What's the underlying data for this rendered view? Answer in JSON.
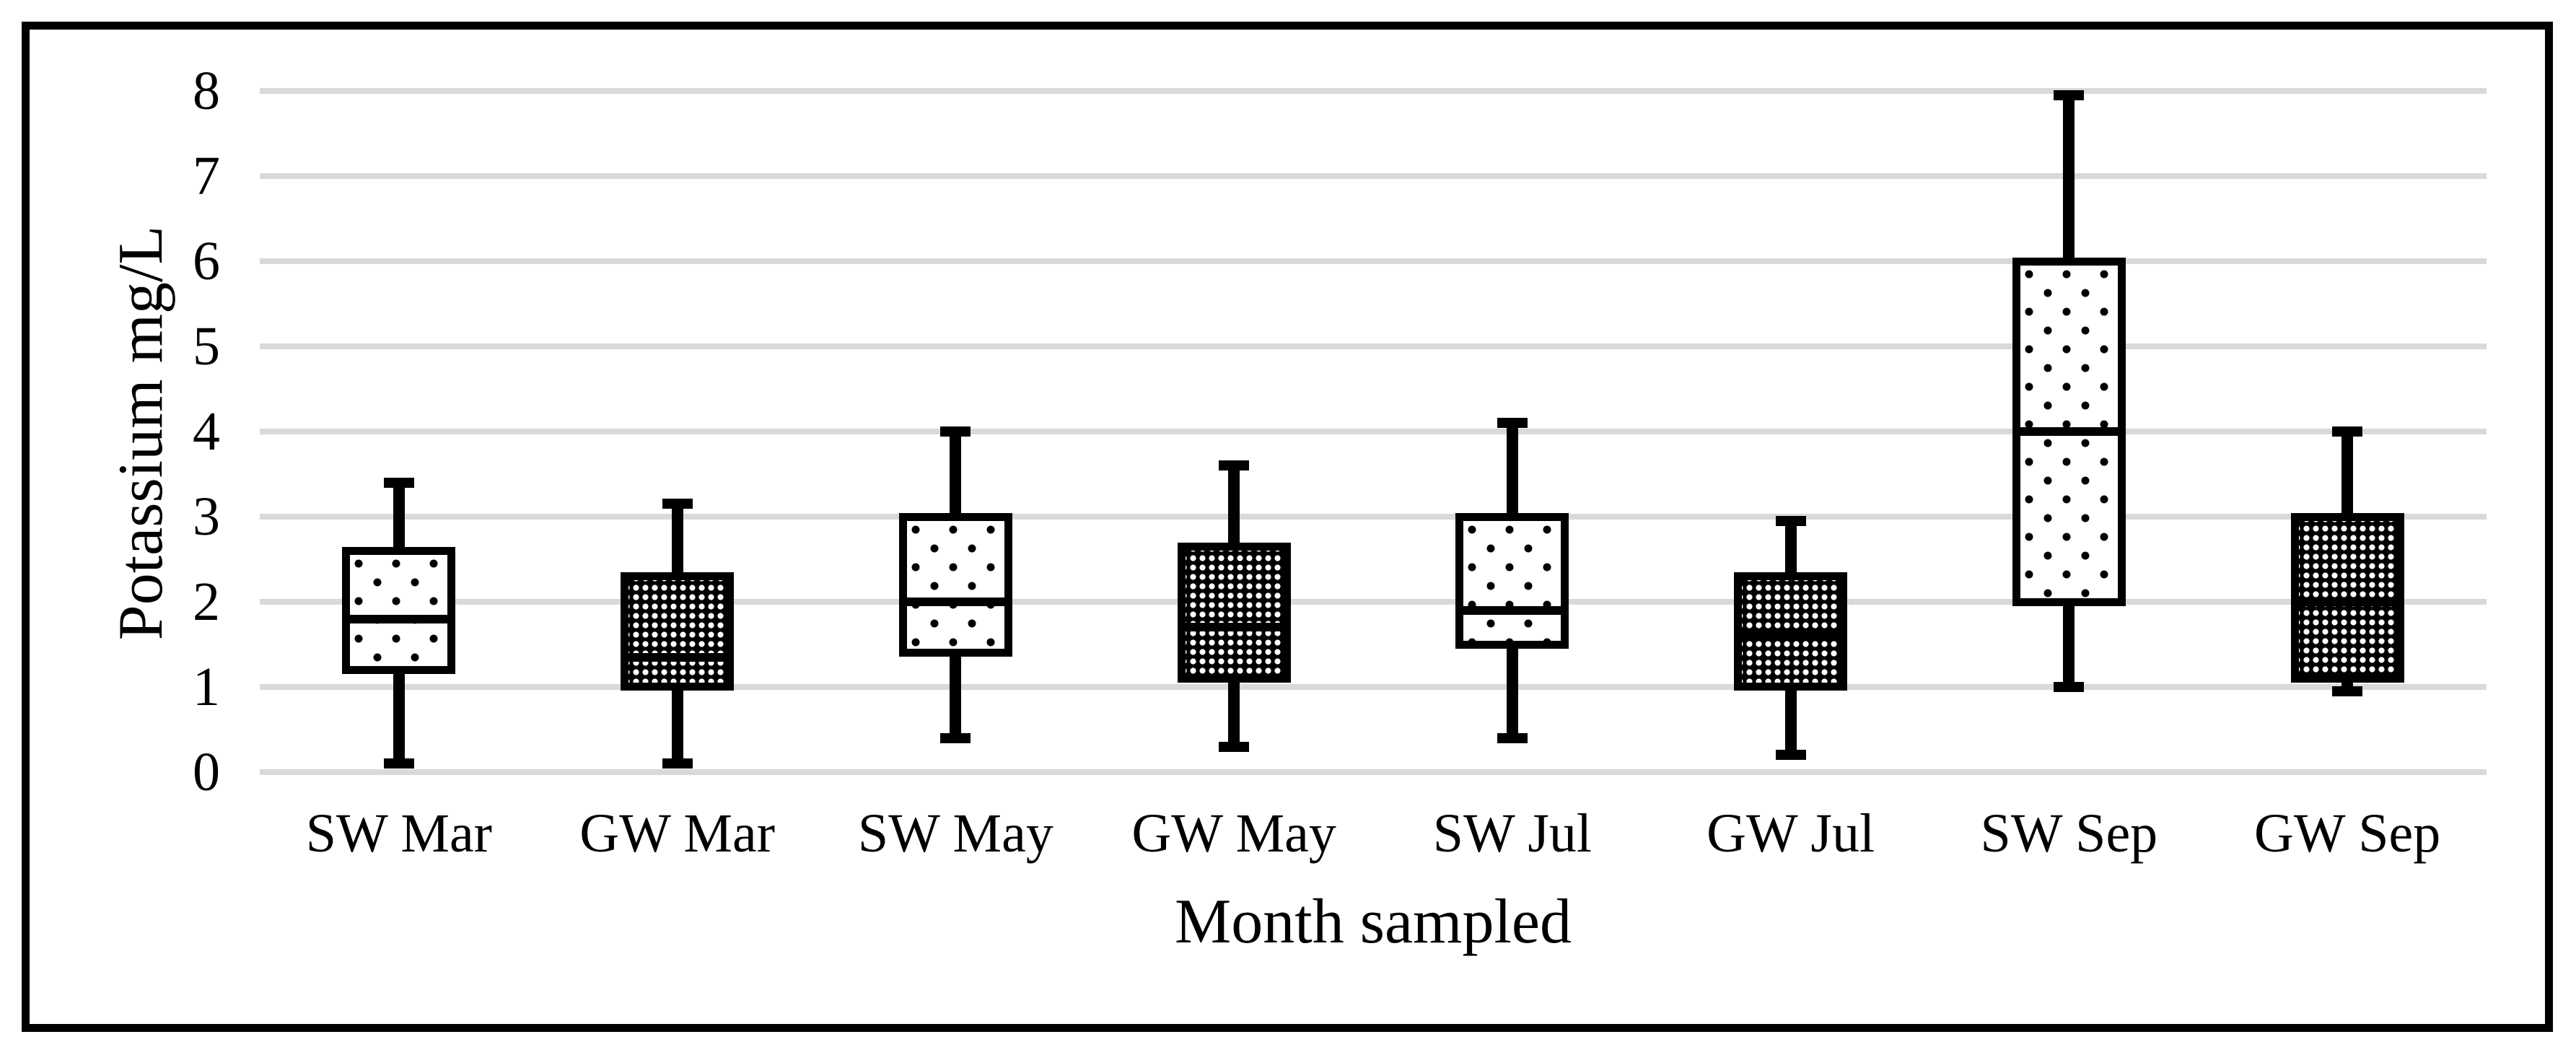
{
  "chart_data": {
    "type": "boxplot",
    "title": "",
    "xlabel": "Month sampled",
    "ylabel": "Potassium mg/L",
    "ylim": [
      0,
      8
    ],
    "yticks": [
      0,
      1,
      2,
      3,
      4,
      5,
      6,
      7,
      8
    ],
    "grid": "horizontal",
    "legend": "none",
    "categories": [
      "SW Mar",
      "GW Mar",
      "SW May",
      "GW May",
      "SW Jul",
      "GW Jul",
      "SW Sep",
      "GW Sep"
    ],
    "series": [
      {
        "name": "SW Mar",
        "group": "SW",
        "min": 0.1,
        "q1": 1.2,
        "median": 1.8,
        "q3": 2.6,
        "max": 3.4
      },
      {
        "name": "GW Mar",
        "group": "GW",
        "min": 0.1,
        "q1": 1.0,
        "median": 1.35,
        "q3": 2.3,
        "max": 3.15
      },
      {
        "name": "SW May",
        "group": "SW",
        "min": 0.4,
        "q1": 1.4,
        "median": 2.0,
        "q3": 3.0,
        "max": 4.0
      },
      {
        "name": "GW May",
        "group": "GW",
        "min": 0.3,
        "q1": 1.1,
        "median": 1.7,
        "q3": 2.65,
        "max": 3.6
      },
      {
        "name": "SW Jul",
        "group": "SW",
        "min": 0.4,
        "q1": 1.5,
        "median": 1.9,
        "q3": 3.0,
        "max": 4.1
      },
      {
        "name": "GW Jul",
        "group": "GW",
        "min": 0.2,
        "q1": 1.0,
        "median": 1.6,
        "q3": 2.3,
        "max": 2.95
      },
      {
        "name": "SW Sep",
        "group": "SW",
        "min": 1.0,
        "q1": 2.0,
        "median": 4.0,
        "q3": 6.0,
        "max": 7.95
      },
      {
        "name": "GW Sep",
        "group": "GW",
        "min": 0.95,
        "q1": 1.1,
        "median": 2.0,
        "q3": 3.0,
        "max": 4.0
      }
    ],
    "colors": {
      "box_border": "#000000",
      "gridline": "#d9d9d9",
      "text": "#000000",
      "frame_border": "#000000",
      "sw_fill": "sparse black square dots on white",
      "gw_fill": "dense white square dots on black"
    }
  }
}
